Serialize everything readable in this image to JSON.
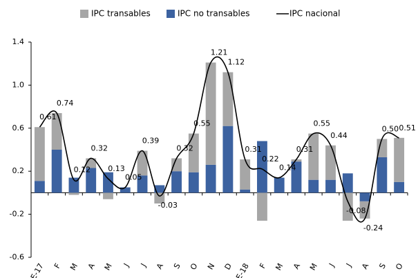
{
  "chart_data": {
    "type": "bar",
    "categories": [
      "E-17",
      "F",
      "M",
      "A",
      "M",
      "J",
      "J",
      "A",
      "S",
      "O",
      "N",
      "D",
      "E-18",
      "F",
      "M",
      "A",
      "M",
      "J",
      "J",
      "A",
      "S",
      "O"
    ],
    "series": [
      {
        "name": "IPC transables",
        "color": "#a6a6a6",
        "type": "bar",
        "values": [
          0.5,
          0.34,
          -0.02,
          0.09,
          -0.06,
          0.0,
          0.23,
          -0.1,
          0.12,
          0.36,
          0.95,
          0.5,
          0.28,
          -0.26,
          0.0,
          0.02,
          0.43,
          0.32,
          -0.26,
          -0.16,
          0.17,
          0.41
        ]
      },
      {
        "name": "IPC no transables",
        "color": "#3c62a0",
        "type": "bar",
        "values": [
          0.11,
          0.4,
          0.14,
          0.23,
          0.19,
          0.05,
          0.16,
          0.07,
          0.2,
          0.19,
          0.26,
          0.62,
          0.03,
          0.48,
          0.14,
          0.29,
          0.12,
          0.12,
          0.18,
          -0.08,
          0.33,
          0.1
        ]
      },
      {
        "name": "IPC nacional",
        "color": "#000000",
        "type": "line",
        "values": [
          0.61,
          0.74,
          0.12,
          0.32,
          0.13,
          0.05,
          0.39,
          -0.03,
          0.32,
          0.55,
          1.21,
          1.12,
          0.31,
          0.22,
          0.14,
          0.31,
          0.55,
          0.44,
          -0.08,
          -0.24,
          0.5,
          0.51
        ],
        "value_labels": [
          "0.61",
          "0.74",
          "0.12",
          "0.32",
          "0.13",
          "0.05",
          "0.39",
          "-0.03",
          "0.32",
          "0.55",
          "1.21",
          "1.12",
          "0.31",
          "0.22",
          "0.14",
          "0.31",
          "0.55",
          "0.44",
          "-0.08",
          "-0.24",
          "0.50",
          "0.51"
        ]
      }
    ],
    "ylim": [
      -0.6,
      1.4
    ],
    "yticks": [
      -0.6,
      -0.2,
      0.2,
      0.6,
      {
        "value": 1.0,
        "label": "1.0"
      },
      1.4
    ],
    "legend": "top"
  }
}
